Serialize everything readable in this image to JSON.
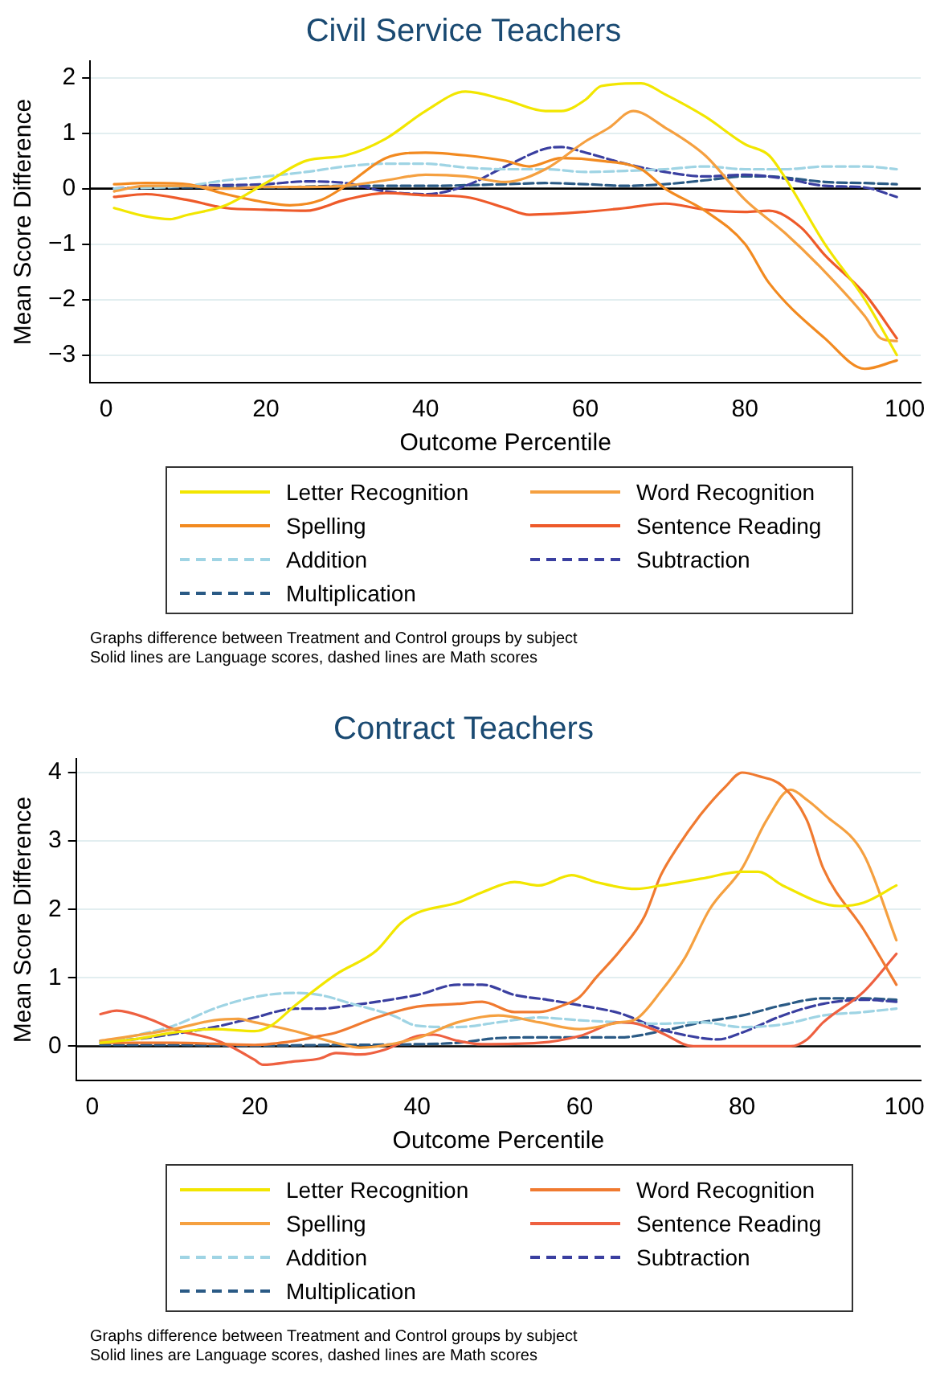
{
  "chart_data": [
    {
      "type": "line",
      "title": "Civil Service Teachers",
      "xlabel": "Outcome Percentile",
      "ylabel": "Mean Score Difference",
      "xlim": [
        -2,
        102
      ],
      "xticks": [
        0,
        20,
        40,
        60,
        80,
        100
      ],
      "ylim": [
        -3.5,
        2.3
      ],
      "yticks": [
        -3,
        -2,
        -1,
        0,
        1,
        2
      ],
      "grid": "y",
      "legend": "bottom",
      "marker": "none",
      "ref_lines": [
        {
          "axis": "y",
          "value": 0,
          "color": "#000000"
        }
      ],
      "annotations": [
        "Graphs difference between Treatment and Control groups by subject",
        "Solid lines are Language scores, dashed lines are Math scores"
      ],
      "series": [
        {
          "name": "Letter Recognition",
          "color": "#f2e600",
          "line_style": "solid",
          "x": [
            1,
            5,
            8,
            10,
            15,
            20,
            25,
            30,
            35,
            40,
            45,
            50,
            55,
            57,
            60,
            62,
            67,
            70,
            75,
            80,
            83,
            85,
            90,
            95,
            99
          ],
          "values": [
            -0.35,
            -0.5,
            -0.55,
            -0.48,
            -0.3,
            0.1,
            0.5,
            0.6,
            0.9,
            1.4,
            1.75,
            1.6,
            1.4,
            1.4,
            1.6,
            1.85,
            1.9,
            1.7,
            1.3,
            0.8,
            0.6,
            0.2,
            -1.0,
            -2.0,
            -3.0
          ]
        },
        {
          "name": "Word Recognition",
          "color": "#f5a040",
          "line_style": "solid",
          "x": [
            1,
            5,
            10,
            15,
            20,
            25,
            30,
            35,
            40,
            45,
            50,
            55,
            60,
            63,
            66,
            70,
            75,
            80,
            85,
            90,
            95,
            97,
            99
          ],
          "values": [
            -0.05,
            0.05,
            0.05,
            0,
            0.03,
            0.03,
            0.05,
            0.15,
            0.25,
            0.22,
            0.12,
            0.35,
            0.85,
            1.1,
            1.4,
            1.1,
            0.6,
            -0.2,
            -0.8,
            -1.5,
            -2.3,
            -2.7,
            -2.75
          ]
        },
        {
          "name": "Spelling",
          "color": "#f28a20",
          "line_style": "solid",
          "x": [
            1,
            5,
            10,
            15,
            20,
            23,
            27,
            30,
            35,
            40,
            45,
            50,
            53,
            57,
            62,
            67,
            70,
            75,
            80,
            83,
            90,
            95,
            99
          ],
          "values": [
            0.08,
            0.1,
            0.08,
            -0.1,
            -0.25,
            -0.3,
            -0.2,
            0.05,
            0.55,
            0.65,
            0.6,
            0.5,
            0.4,
            0.55,
            0.5,
            0.35,
            0,
            -0.4,
            -1.0,
            -1.7,
            -2.7,
            -3.25,
            -3.1
          ]
        },
        {
          "name": "Sentence Reading",
          "color": "#ee5a2a",
          "line_style": "solid",
          "x": [
            1,
            5,
            10,
            15,
            20,
            25,
            30,
            35,
            40,
            45,
            50,
            53,
            60,
            65,
            70,
            75,
            80,
            83,
            87,
            90,
            95,
            99
          ],
          "values": [
            -0.15,
            -0.1,
            -0.2,
            -0.35,
            -0.38,
            -0.4,
            -0.2,
            -0.08,
            -0.12,
            -0.15,
            -0.35,
            -0.47,
            -0.42,
            -0.35,
            -0.27,
            -0.38,
            -0.42,
            -0.4,
            -0.7,
            -1.2,
            -1.9,
            -2.7
          ]
        },
        {
          "name": "Addition",
          "color": "#9fd4e4",
          "line_style": "dashed",
          "x": [
            1,
            10,
            15,
            20,
            25,
            30,
            35,
            40,
            45,
            50,
            55,
            60,
            65,
            70,
            75,
            80,
            85,
            90,
            95,
            99
          ],
          "values": [
            0,
            0.05,
            0.15,
            0.22,
            0.3,
            0.4,
            0.45,
            0.45,
            0.38,
            0.35,
            0.35,
            0.3,
            0.32,
            0.35,
            0.4,
            0.35,
            0.35,
            0.4,
            0.4,
            0.35
          ]
        },
        {
          "name": "Subtraction",
          "color": "#3a3fa0",
          "line_style": "dashed",
          "x": [
            1,
            10,
            20,
            25,
            30,
            35,
            40,
            45,
            50,
            55,
            57,
            60,
            65,
            70,
            75,
            80,
            85,
            90,
            95,
            99
          ],
          "values": [
            0,
            0.05,
            0.08,
            0.13,
            0.1,
            -0.05,
            -0.1,
            0.05,
            0.4,
            0.72,
            0.75,
            0.65,
            0.45,
            0.3,
            0.22,
            0.25,
            0.18,
            0.05,
            0.02,
            -0.15
          ]
        },
        {
          "name": "Multiplication",
          "color": "#2a5a85",
          "line_style": "dashed",
          "x": [
            1,
            10,
            20,
            30,
            40,
            50,
            55,
            60,
            65,
            70,
            75,
            80,
            83,
            85,
            90,
            95,
            99
          ],
          "values": [
            0,
            0.02,
            0.02,
            0.05,
            0.05,
            0.08,
            0.1,
            0.08,
            0.05,
            0.08,
            0.15,
            0.22,
            0.22,
            0.2,
            0.12,
            0.1,
            0.08
          ]
        }
      ]
    },
    {
      "type": "line",
      "title": "Contract Teachers",
      "xlabel": "Outcome Percentile",
      "ylabel": "Mean Score Difference",
      "xlim": [
        -2,
        102
      ],
      "xticks": [
        0,
        20,
        40,
        60,
        80,
        100
      ],
      "ylim": [
        -0.5,
        4.2
      ],
      "yticks": [
        0,
        1,
        2,
        3,
        4
      ],
      "grid": "y",
      "legend": "bottom",
      "marker": "none",
      "ref_lines": [
        {
          "axis": "y",
          "value": 0,
          "color": "#000000"
        }
      ],
      "annotations": [
        "Graphs difference between Treatment and Control groups by subject",
        "Solid lines are Language scores, dashed lines are Math scores"
      ],
      "series": [
        {
          "name": "Letter Recognition",
          "color": "#f2e600",
          "line_style": "solid",
          "x": [
            1,
            5,
            10,
            15,
            20,
            22,
            25,
            30,
            35,
            38,
            40,
            45,
            48,
            52,
            55,
            59,
            62,
            67,
            70,
            75,
            80,
            82,
            85,
            92,
            95,
            99
          ],
          "values": [
            0.05,
            0.1,
            0.2,
            0.25,
            0.22,
            0.3,
            0.6,
            1.05,
            1.4,
            1.8,
            1.95,
            2.1,
            2.25,
            2.4,
            2.35,
            2.5,
            2.4,
            2.3,
            2.35,
            2.45,
            2.55,
            2.55,
            2.35,
            2.05,
            2.1,
            2.35
          ]
        },
        {
          "name": "Word Recognition",
          "color": "#f07a30",
          "line_style": "solid",
          "x": [
            1,
            5,
            10,
            20,
            25,
            28,
            30,
            35,
            40,
            45,
            48,
            52,
            55,
            58,
            60,
            62,
            65,
            68,
            70,
            72,
            75,
            78,
            80,
            82,
            85,
            88,
            90,
            95,
            99
          ],
          "values": [
            0.05,
            0.05,
            0.05,
            0.02,
            0.08,
            0.15,
            0.2,
            0.42,
            0.58,
            0.62,
            0.65,
            0.5,
            0.5,
            0.6,
            0.72,
            1.0,
            1.4,
            1.9,
            2.5,
            2.9,
            3.4,
            3.8,
            4.0,
            3.95,
            3.8,
            3.3,
            2.6,
            1.7,
            0.9
          ]
        },
        {
          "name": "Spelling",
          "color": "#f5a040",
          "line_style": "solid",
          "x": [
            1,
            5,
            10,
            15,
            18,
            20,
            25,
            30,
            33,
            40,
            45,
            50,
            55,
            60,
            65,
            67,
            70,
            73,
            76,
            80,
            83,
            86,
            88,
            90,
            95,
            99
          ],
          "values": [
            0.08,
            0.15,
            0.25,
            0.38,
            0.4,
            0.35,
            0.22,
            0.05,
            -0.02,
            0.12,
            0.35,
            0.45,
            0.35,
            0.25,
            0.35,
            0.4,
            0.8,
            1.3,
            2.0,
            2.6,
            3.3,
            3.75,
            3.6,
            3.4,
            2.8,
            1.55
          ]
        },
        {
          "name": "Sentence Reading",
          "color": "#ee6040",
          "line_style": "solid",
          "x": [
            1,
            3,
            7,
            10,
            15,
            17,
            20,
            21,
            25,
            28,
            30,
            33,
            36,
            40,
            42,
            45,
            48,
            55,
            60,
            65,
            67,
            70,
            74,
            80,
            86,
            88,
            90,
            95,
            99
          ],
          "values": [
            0.47,
            0.52,
            0.4,
            0.25,
            0.1,
            0,
            -0.2,
            -0.27,
            -0.22,
            -0.18,
            -0.1,
            -0.12,
            -0.05,
            0.15,
            0.17,
            0.08,
            0.03,
            0.05,
            0.15,
            0.35,
            0.33,
            0.2,
            0,
            0,
            0,
            0.1,
            0.35,
            0.8,
            1.35
          ]
        },
        {
          "name": "Addition",
          "color": "#9fd4e4",
          "line_style": "dashed",
          "x": [
            1,
            5,
            10,
            15,
            20,
            25,
            28,
            32,
            37,
            40,
            45,
            50,
            55,
            60,
            65,
            70,
            75,
            80,
            85,
            90,
            95,
            99
          ],
          "values": [
            0.05,
            0.15,
            0.3,
            0.55,
            0.72,
            0.78,
            0.75,
            0.62,
            0.45,
            0.3,
            0.28,
            0.35,
            0.42,
            0.38,
            0.35,
            0.33,
            0.35,
            0.28,
            0.32,
            0.45,
            0.5,
            0.55
          ]
        },
        {
          "name": "Subtraction",
          "color": "#3a3fa0",
          "line_style": "dashed",
          "x": [
            1,
            5,
            10,
            15,
            20,
            25,
            28,
            32,
            35,
            40,
            45,
            48,
            52,
            56,
            60,
            65,
            70,
            75,
            77,
            80,
            85,
            90,
            95,
            99
          ],
          "values": [
            0.08,
            0.1,
            0.18,
            0.28,
            0.42,
            0.55,
            0.55,
            0.6,
            0.65,
            0.75,
            0.9,
            0.9,
            0.75,
            0.68,
            0.6,
            0.48,
            0.25,
            0.12,
            0.1,
            0.2,
            0.45,
            0.62,
            0.68,
            0.65
          ]
        },
        {
          "name": "Multiplication",
          "color": "#2a5a85",
          "line_style": "dashed",
          "x": [
            1,
            10,
            20,
            30,
            40,
            45,
            50,
            55,
            60,
            65,
            70,
            75,
            80,
            85,
            90,
            95,
            99
          ],
          "values": [
            0.02,
            0.02,
            0.01,
            0.02,
            0.03,
            0.05,
            0.12,
            0.13,
            0.13,
            0.13,
            0.22,
            0.35,
            0.45,
            0.6,
            0.7,
            0.7,
            0.68
          ]
        }
      ]
    }
  ]
}
